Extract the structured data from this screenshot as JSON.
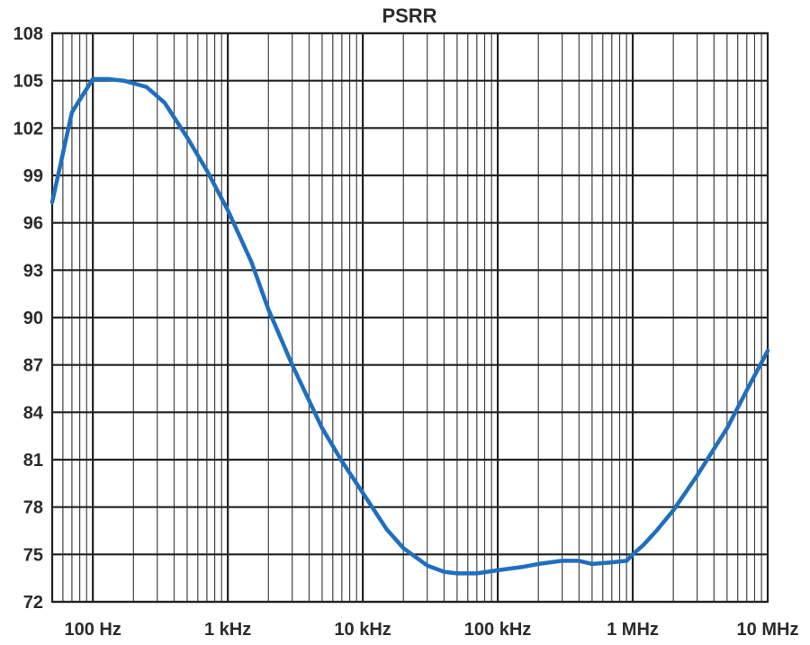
{
  "chart_data": {
    "type": "line",
    "title": "PSRR",
    "xlabel": "",
    "ylabel": "",
    "x_scale": "log",
    "xlim": [
      50,
      10000000
    ],
    "ylim": [
      72,
      108
    ],
    "grid": true,
    "x_ticks": [
      {
        "value": 100,
        "label": "100 Hz"
      },
      {
        "value": 1000,
        "label": "1 kHz"
      },
      {
        "value": 10000,
        "label": "10 kHz"
      },
      {
        "value": 100000,
        "label": "100 kHz"
      },
      {
        "value": 1000000,
        "label": "1 MHz"
      },
      {
        "value": 10000000,
        "label": "10 MHz"
      }
    ],
    "y_ticks": [
      {
        "value": 108,
        "label": "108"
      },
      {
        "value": 105,
        "label": "105"
      },
      {
        "value": 102,
        "label": "102"
      },
      {
        "value": 99,
        "label": "99"
      },
      {
        "value": 96,
        "label": "96"
      },
      {
        "value": 93,
        "label": "93"
      },
      {
        "value": 90,
        "label": "90"
      },
      {
        "value": 87,
        "label": "87"
      },
      {
        "value": 84,
        "label": "84"
      },
      {
        "value": 81,
        "label": "81"
      },
      {
        "value": 78,
        "label": "78"
      },
      {
        "value": 75,
        "label": "75"
      },
      {
        "value": 72,
        "label": "72"
      }
    ],
    "series": [
      {
        "color": "#1f6fbf",
        "x": [
          50,
          70,
          100,
          130,
          170,
          250,
          340,
          500,
          700,
          1000,
          1500,
          2000,
          3000,
          5000,
          7000,
          10000,
          15000,
          20000,
          30000,
          40000,
          50000,
          70000,
          100000,
          150000,
          200000,
          300000,
          400000,
          500000,
          700000,
          900000,
          1000000,
          1200000,
          1500000,
          2000000,
          3000000,
          5000000,
          7000000,
          10000000
        ],
        "y": [
          97.3,
          103.0,
          105.1,
          105.1,
          105.0,
          104.6,
          103.6,
          101.4,
          99.3,
          96.8,
          93.5,
          90.5,
          87.0,
          83.0,
          80.9,
          78.9,
          76.6,
          75.4,
          74.3,
          73.9,
          73.8,
          73.8,
          74.0,
          74.2,
          74.4,
          74.6,
          74.6,
          74.4,
          74.5,
          74.6,
          75.0,
          75.6,
          76.5,
          77.8,
          80.0,
          83.0,
          85.4,
          87.9
        ]
      }
    ]
  }
}
